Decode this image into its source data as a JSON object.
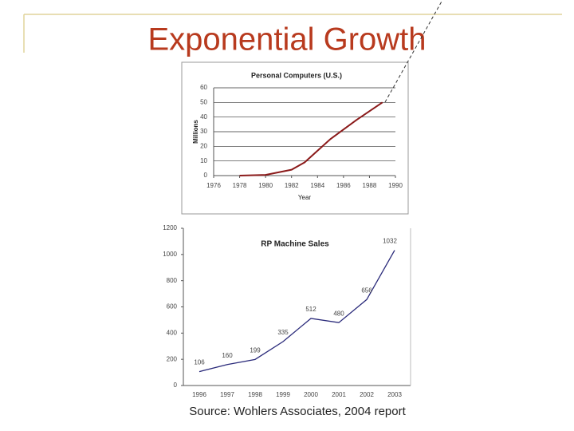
{
  "slide": {
    "title": "Exponential Growth",
    "source": "Source: Wohlers Associates, 2004 report"
  },
  "chart_data": [
    {
      "type": "line",
      "title": "Personal Computers (U.S.)",
      "x_label": "Year",
      "y_label": "Millions",
      "x": [
        1978,
        1980,
        1982,
        1983,
        1985,
        1987,
        1989
      ],
      "series": [
        {
          "name": "Personal Computers",
          "color": "#8b1a1a",
          "values": [
            0,
            0.5,
            4,
            9,
            25,
            38,
            50
          ]
        }
      ],
      "xlim": [
        1976,
        1990
      ],
      "xticks": [
        1976,
        1978,
        1980,
        1982,
        1984,
        1986,
        1988,
        1990
      ],
      "ylim": [
        0,
        60
      ],
      "yticks": [
        0,
        10,
        20,
        30,
        40,
        50,
        60
      ],
      "grid": true
    },
    {
      "type": "line",
      "title": "RP Machine Sales",
      "categories": [
        "1996",
        "1997",
        "1998",
        "1999",
        "2000",
        "2001",
        "2002",
        "2003"
      ],
      "series": [
        {
          "name": "RP Machine Sales",
          "color": "#2a2a7a",
          "values": [
            106,
            160,
            199,
            335,
            512,
            480,
            656,
            1032
          ]
        }
      ],
      "ylim": [
        0,
        1200
      ],
      "yticks": [
        0,
        200,
        400,
        600,
        800,
        1000,
        1200
      ],
      "grid": false
    }
  ]
}
